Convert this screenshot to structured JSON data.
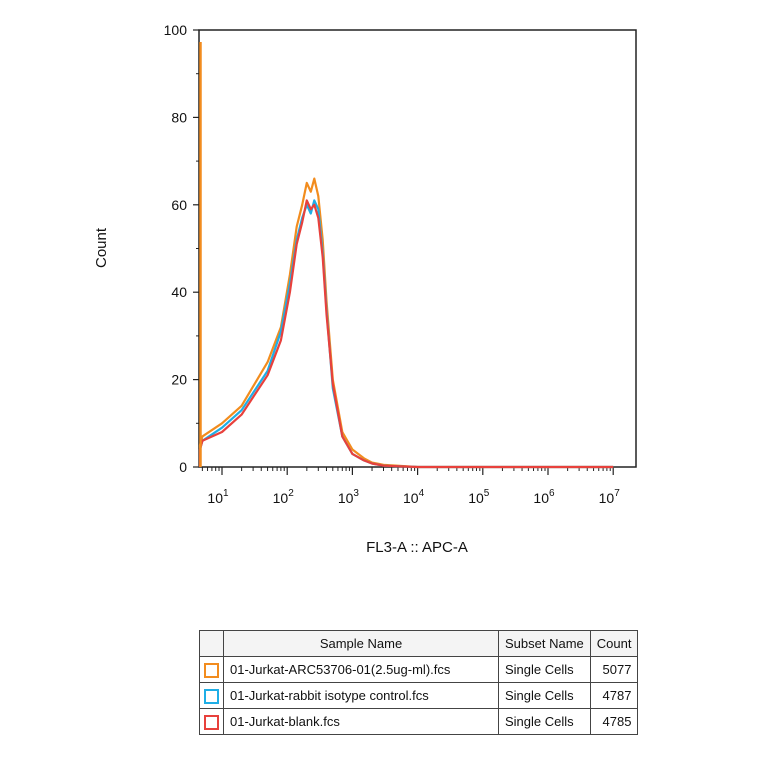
{
  "chart_data": {
    "type": "line",
    "xlabel": "FL3-A :: APC-A",
    "ylabel": "Count",
    "xscale": "log",
    "xlim": [
      0,
      10000000
    ],
    "ylim": [
      0,
      100
    ],
    "y_ticks": [
      "0",
      "20",
      "40",
      "60",
      "80",
      "100"
    ],
    "x_ticks": [
      {
        "base": "10",
        "exp": "1"
      },
      {
        "base": "10",
        "exp": "2"
      },
      {
        "base": "10",
        "exp": "3"
      },
      {
        "base": "10",
        "exp": "4"
      },
      {
        "base": "10",
        "exp": "5"
      },
      {
        "base": "10",
        "exp": "6"
      },
      {
        "base": "10",
        "exp": "7"
      }
    ],
    "grid": false,
    "series": [
      {
        "name": "01-Jurkat-ARC53706-01(2.5ug-ml).fcs",
        "color": "#f28c1e",
        "x": [
          1,
          2,
          5,
          10,
          20,
          50,
          80,
          110,
          140,
          170,
          200,
          230,
          260,
          300,
          350,
          400,
          500,
          700,
          1000,
          1500,
          2000,
          3000,
          10000,
          1000000,
          10000000
        ],
        "y": [
          4,
          5,
          7,
          10,
          14,
          24,
          32,
          44,
          55,
          60,
          65,
          63,
          66,
          62,
          52,
          38,
          20,
          8,
          4,
          2,
          1,
          0.5,
          0,
          0,
          0
        ]
      },
      {
        "name": "01-Jurkat-rabbit isotype control.fcs",
        "color": "#1eaee6",
        "x": [
          1,
          2,
          5,
          10,
          20,
          50,
          80,
          110,
          140,
          170,
          200,
          230,
          260,
          300,
          350,
          400,
          500,
          700,
          1000,
          1500,
          2000,
          3000,
          10000,
          1000000,
          10000000
        ],
        "y": [
          2,
          4,
          6,
          9,
          13,
          22,
          31,
          42,
          52,
          57,
          60,
          58,
          61,
          59,
          49,
          36,
          18,
          7,
          3,
          1.5,
          0.8,
          0.3,
          0,
          0,
          0
        ]
      },
      {
        "name": "01-Jurkat-blank.fcs",
        "color": "#e8413c",
        "x": [
          1,
          2,
          5,
          10,
          20,
          50,
          80,
          110,
          140,
          170,
          200,
          230,
          260,
          300,
          350,
          400,
          500,
          700,
          1000,
          1500,
          2000,
          3000,
          10000,
          1000000,
          10000000
        ],
        "y": [
          3,
          4,
          6,
          8,
          12,
          21,
          29,
          40,
          51,
          56,
          61,
          59,
          60,
          57,
          48,
          35,
          19,
          7,
          3,
          1.5,
          0.8,
          0.3,
          0,
          0,
          0
        ]
      }
    ]
  },
  "legend_table": {
    "headers": {
      "sample": "Sample Name",
      "subset": "Subset Name",
      "count": "Count"
    },
    "rows": [
      {
        "color": "#f28c1e",
        "sample": "01-Jurkat-ARC53706-01(2.5ug-ml).fcs",
        "subset": "Single Cells",
        "count": "5077"
      },
      {
        "color": "#1eaee6",
        "sample": "01-Jurkat-rabbit isotype control.fcs",
        "subset": "Single Cells",
        "count": "4787"
      },
      {
        "color": "#e8413c",
        "sample": "01-Jurkat-blank.fcs",
        "subset": "Single Cells",
        "count": "4785"
      }
    ]
  }
}
